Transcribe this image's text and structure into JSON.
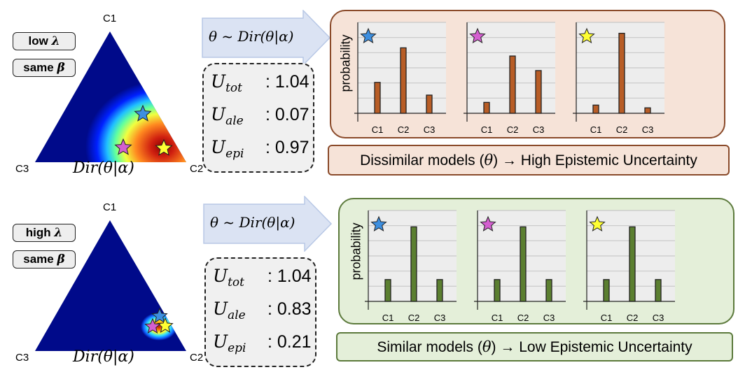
{
  "rows": [
    {
      "tags": {
        "lambda_word": "low",
        "lambda_sym": "λ",
        "beta_word": "same",
        "beta_sym": "β"
      },
      "vertices": {
        "top": "C1",
        "left": "C3",
        "right": "C2"
      },
      "dist_label": "Dir(θ|α)",
      "arrow_label": "θ ~ Dir(θ|α)",
      "uncertainty": [
        {
          "sym": "U",
          "sub": "tot",
          "value": ": 1.04"
        },
        {
          "sym": "U",
          "sub": "ale",
          "value": ": 0.07"
        },
        {
          "sym": "U",
          "sub": "epi",
          "value": ": 0.97"
        }
      ],
      "panel_color": "#f6e3d8",
      "panel_border": "#8a4a2a",
      "bar_color": "#b85d26",
      "ylabel": "probability",
      "caption": {
        "pre": "Dissimilar models (",
        "sym": "θ",
        "post": ")  → High Epistemic Uncertainty"
      },
      "chart_data": [
        {
          "type": "bar",
          "marker": "blue-star",
          "categories": [
            "C1",
            "C2",
            "C3"
          ],
          "values": [
            0.34,
            0.72,
            0.2
          ],
          "ylabel": "probability",
          "ylim": [
            0,
            1
          ]
        },
        {
          "type": "bar",
          "marker": "pink-star",
          "categories": [
            "C1",
            "C2",
            "C3"
          ],
          "values": [
            0.12,
            0.63,
            0.47
          ],
          "ylabel": "",
          "ylim": [
            0,
            1
          ]
        },
        {
          "type": "bar",
          "marker": "yellow-star",
          "categories": [
            "C1",
            "C2",
            "C3"
          ],
          "values": [
            0.09,
            0.88,
            0.06
          ],
          "ylabel": "",
          "ylim": [
            0,
            1
          ]
        }
      ]
    },
    {
      "tags": {
        "lambda_word": "high",
        "lambda_sym": "λ",
        "beta_word": "same",
        "beta_sym": "β"
      },
      "vertices": {
        "top": "C1",
        "left": "C3",
        "right": "C2"
      },
      "dist_label": "Dir(θ|α)",
      "arrow_label": "θ ~ Dir(θ|α)",
      "uncertainty": [
        {
          "sym": "U",
          "sub": "tot",
          "value": ": 1.04"
        },
        {
          "sym": "U",
          "sub": "ale",
          "value": ": 0.83"
        },
        {
          "sym": "U",
          "sub": "epi",
          "value": ": 0.21"
        }
      ],
      "panel_color": "#e4efd9",
      "panel_border": "#5c7a3c",
      "bar_color": "#5b7f30",
      "ylabel": "probability",
      "caption": {
        "pre": "Similar models (",
        "sym": "θ",
        "post": ")  → Low Epistemic Uncertainty"
      },
      "chart_data": [
        {
          "type": "bar",
          "marker": "blue-star",
          "categories": [
            "C1",
            "C2",
            "C3"
          ],
          "values": [
            0.24,
            0.82,
            0.24
          ],
          "ylabel": "probability",
          "ylim": [
            0,
            1
          ]
        },
        {
          "type": "bar",
          "marker": "pink-star",
          "categories": [
            "C1",
            "C2",
            "C3"
          ],
          "values": [
            0.24,
            0.82,
            0.24
          ],
          "ylabel": "",
          "ylim": [
            0,
            1
          ]
        },
        {
          "type": "bar",
          "marker": "yellow-star",
          "categories": [
            "C1",
            "C2",
            "C3"
          ],
          "values": [
            0.24,
            0.82,
            0.24
          ],
          "ylabel": "",
          "ylim": [
            0,
            1
          ]
        }
      ]
    }
  ],
  "colors": {
    "blue-star": "#3d8fe0",
    "pink-star": "#d45fd0",
    "yellow-star": "#ffff33",
    "arrow": "#dbe3f3",
    "arrow_border": "#b8c8e6"
  }
}
